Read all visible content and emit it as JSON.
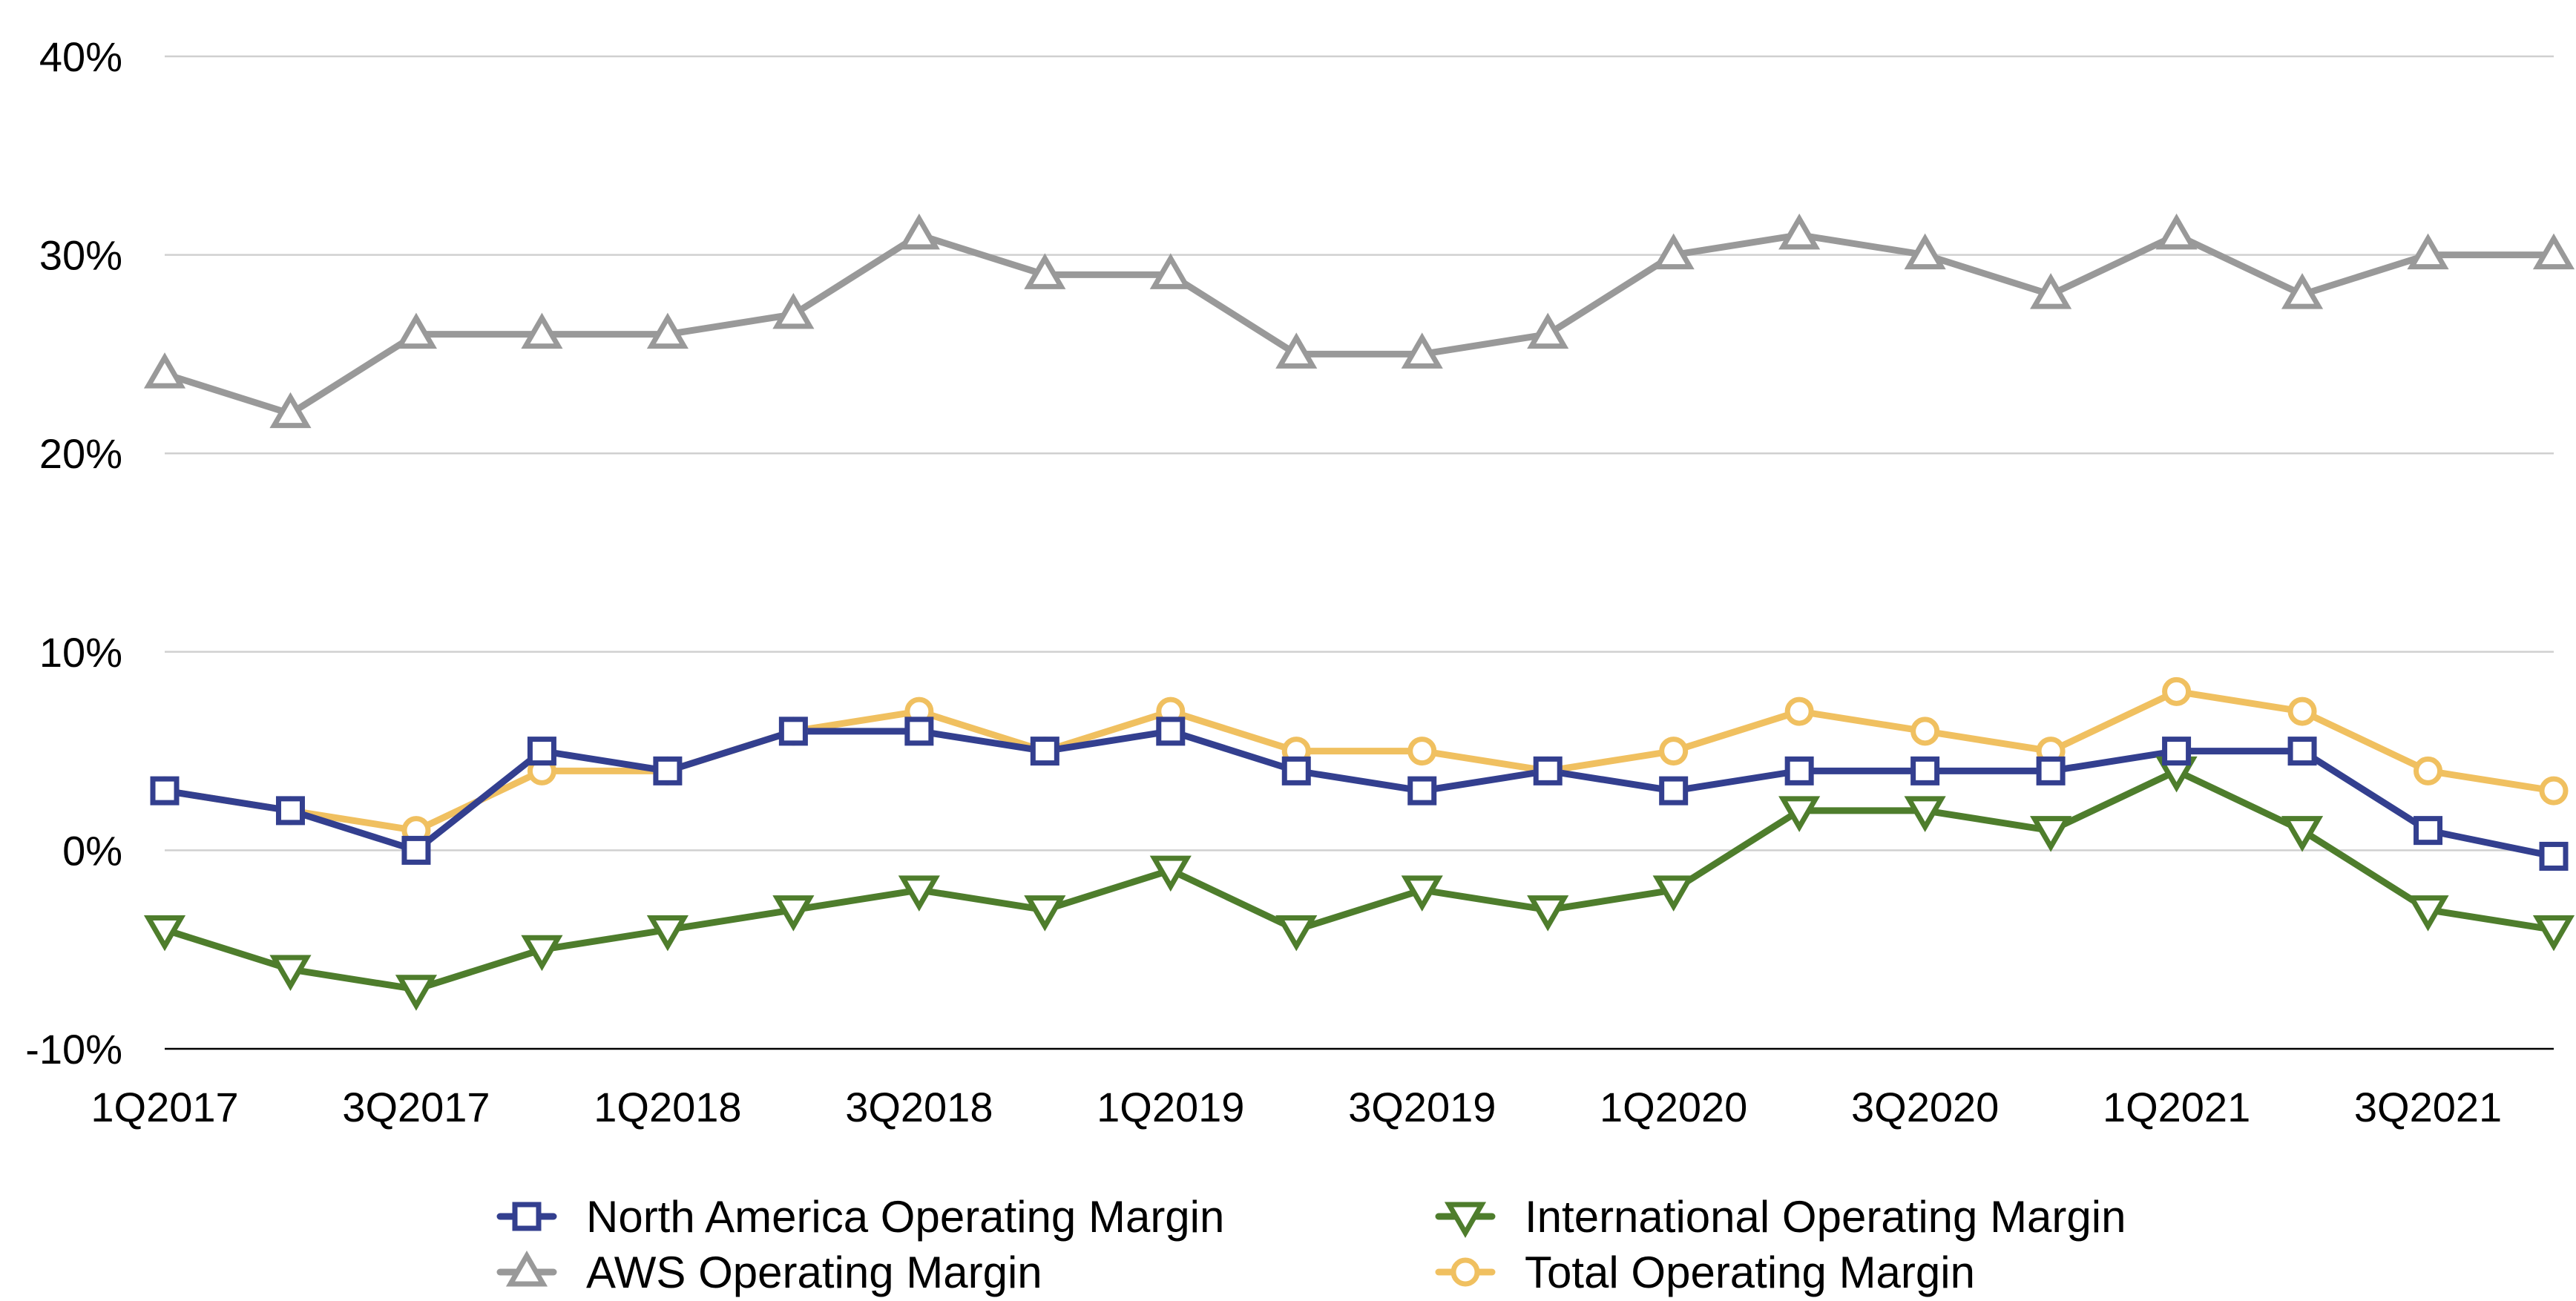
{
  "chart_data": {
    "type": "line",
    "categories": [
      "1Q2017",
      "2Q2017",
      "3Q2017",
      "4Q2017",
      "1Q2018",
      "2Q2018",
      "3Q2018",
      "4Q2018",
      "1Q2019",
      "2Q2019",
      "3Q2019",
      "4Q2019",
      "1Q2020",
      "2Q2020",
      "3Q2020",
      "4Q2020",
      "1Q2021",
      "2Q2021",
      "3Q2021",
      "4Q2021"
    ],
    "x_tick_labels": [
      "1Q2017",
      "3Q2017",
      "1Q2018",
      "3Q2018",
      "1Q2019",
      "3Q2019",
      "1Q2020",
      "3Q2020",
      "1Q2021",
      "3Q2021"
    ],
    "y_ticks": [
      -10,
      0,
      10,
      20,
      30,
      40
    ],
    "y_tick_labels": [
      "-10%",
      "0%",
      "10%",
      "20%",
      "30%",
      "40%"
    ],
    "ylim": [
      -10,
      40
    ],
    "grid": true,
    "legend_position": "bottom",
    "series": [
      {
        "name": "North America Operating Margin",
        "color": "#333f8f",
        "marker": "square",
        "values": [
          3,
          2,
          0,
          5,
          4,
          6,
          6,
          5,
          6,
          4,
          3,
          4,
          3,
          4,
          4,
          4,
          5,
          5,
          1,
          -0.3
        ]
      },
      {
        "name": "AWS Operating Margin",
        "color": "#999999",
        "marker": "triangle-up",
        "values": [
          24,
          22,
          26,
          26,
          26,
          27,
          31,
          29,
          29,
          25,
          25,
          26,
          30,
          31,
          30,
          28,
          31,
          28,
          30,
          30
        ]
      },
      {
        "name": "International Operating Margin",
        "color": "#4e7d2c",
        "marker": "triangle-down",
        "values": [
          -4,
          -6,
          -7,
          -5,
          -4,
          -3,
          -2,
          -3,
          -1,
          -4,
          -2,
          -3,
          -2,
          2,
          2,
          1,
          4,
          1,
          -3,
          -4
        ]
      },
      {
        "name": "Total Operating Margin",
        "color": "#f0c060",
        "marker": "circle",
        "values": [
          3,
          2,
          1,
          4,
          4,
          6,
          7,
          5,
          7,
          5,
          5,
          4,
          5,
          7,
          6,
          5,
          8,
          7,
          4,
          3
        ]
      }
    ]
  }
}
